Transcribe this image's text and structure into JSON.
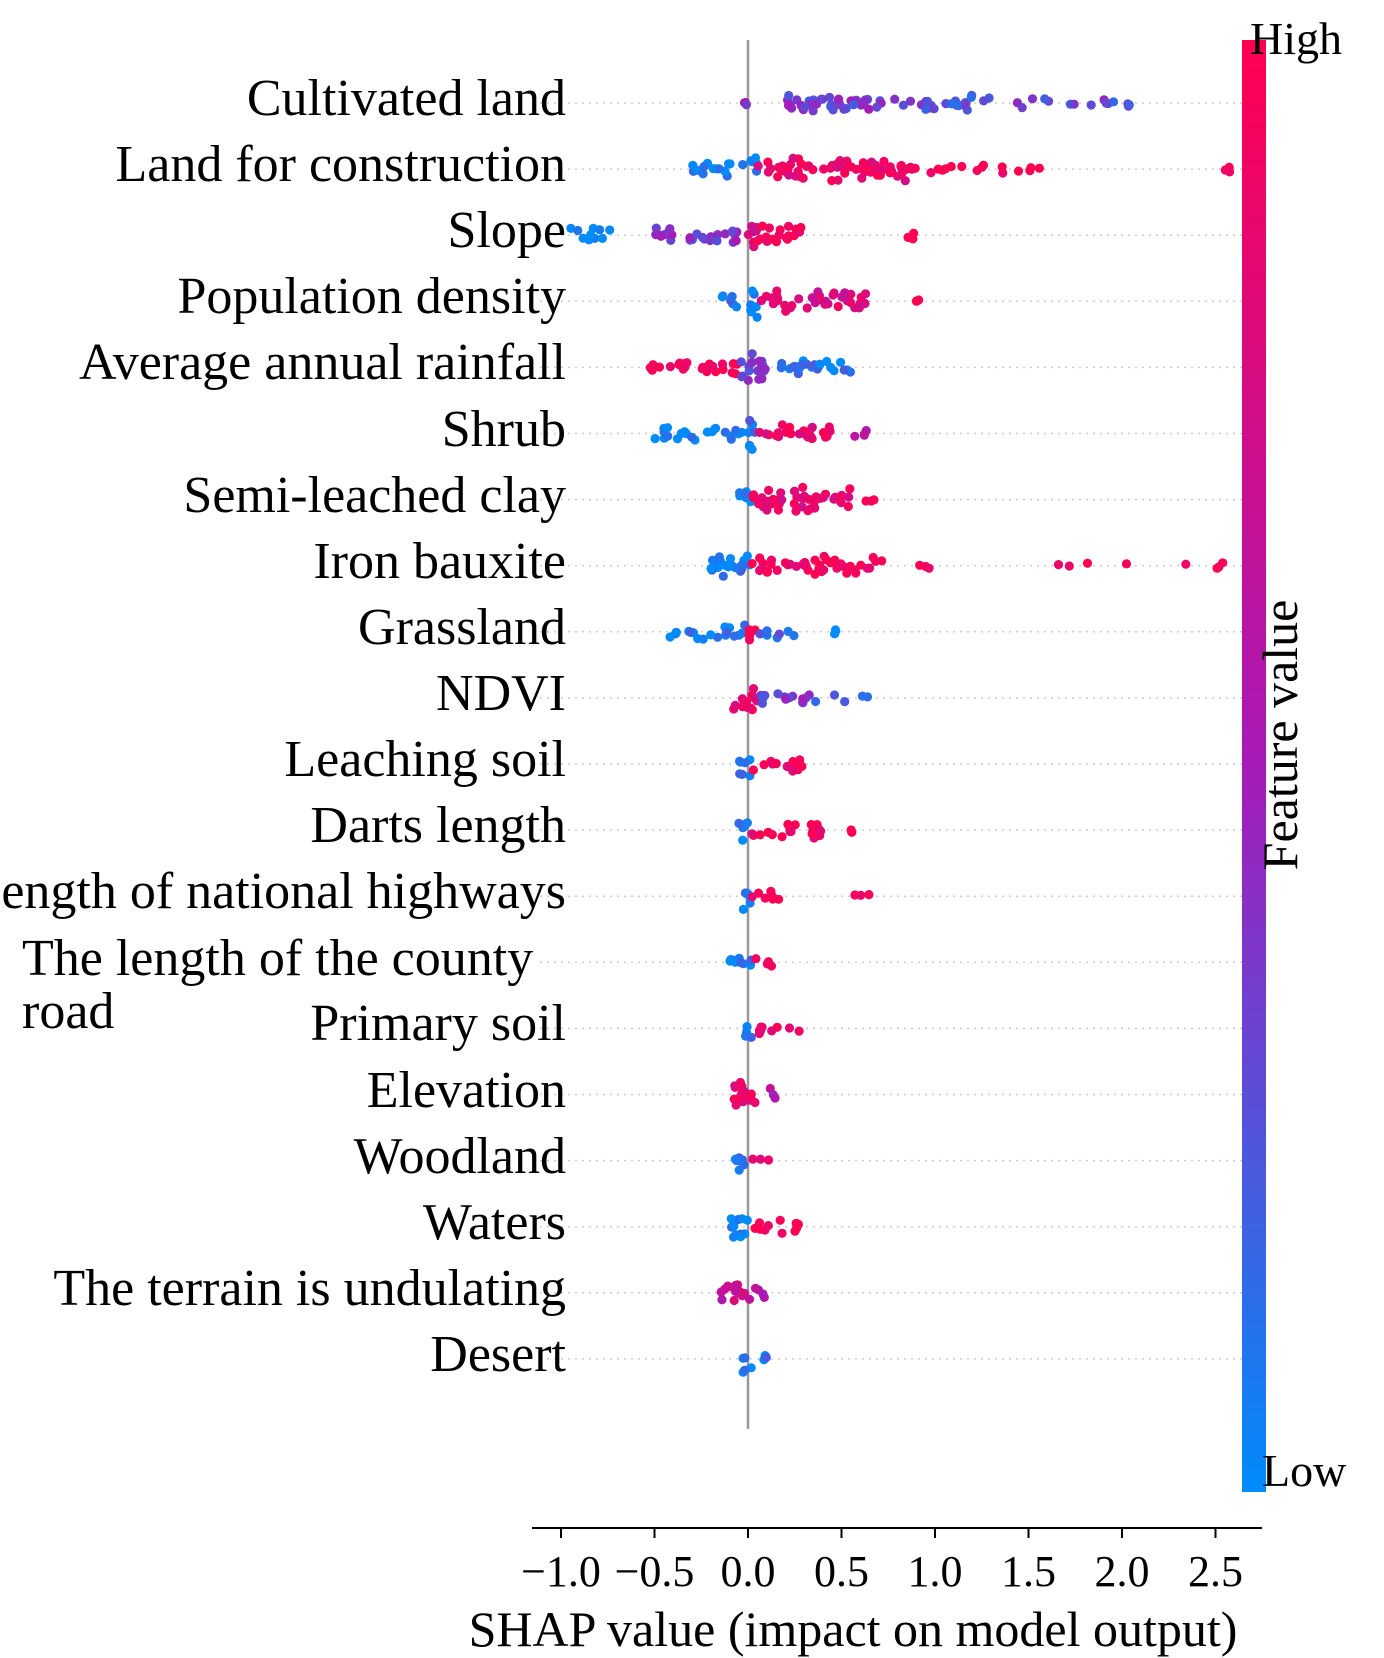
{
  "chart_data": {
    "type": "scatter",
    "subtype": "shap-beeswarm",
    "xlabel": "SHAP value (impact on model output)",
    "xlim": [
      -1.0,
      2.75
    ],
    "xticks": [
      -1.0,
      -0.5,
      0.0,
      0.5,
      1.0,
      1.5,
      2.0,
      2.5
    ],
    "xtick_labels": [
      "−1.0",
      "−0.5",
      "0.0",
      "0.5",
      "1.0",
      "1.5",
      "2.0",
      "2.5"
    ],
    "colorbar": {
      "title": "Feature value",
      "high_label": "High",
      "low_label": "Low",
      "high_color": "#ff0052",
      "mid_color": "#a71ab8",
      "low_color": "#008bfb"
    },
    "features": [
      {
        "name": "Cultivated land",
        "clusters": [
          [
            -0.15,
            0.05,
            0.4,
            0.0
          ],
          [
            0.15,
            0.85,
            0.35,
            0.35
          ],
          [
            0.85,
            1.3,
            0.25,
            0.3
          ],
          [
            1.4,
            2.05,
            0.3,
            0.15
          ]
        ]
      },
      {
        "name": "Land for construction",
        "clusters": [
          [
            -0.3,
            0.0,
            0.05,
            0.3
          ],
          [
            0.0,
            0.05,
            0.0,
            0.6
          ],
          [
            0.05,
            0.85,
            0.9,
            0.5
          ],
          [
            0.85,
            1.6,
            1.0,
            0.15
          ],
          [
            2.55,
            2.6,
            1.0,
            0.1
          ]
        ]
      },
      {
        "name": "Slope",
        "clusters": [
          [
            -0.95,
            -0.72,
            0.0,
            0.25
          ],
          [
            -0.5,
            -0.05,
            0.4,
            0.35
          ],
          [
            0.0,
            0.05,
            0.7,
            0.9
          ],
          [
            0.05,
            0.3,
            0.95,
            0.45
          ],
          [
            0.85,
            0.9,
            1.0,
            0.1
          ]
        ]
      },
      {
        "name": "Population density",
        "clusters": [
          [
            -0.15,
            0.0,
            0.1,
            0.25
          ],
          [
            0.0,
            0.05,
            0.05,
            0.8
          ],
          [
            0.05,
            0.65,
            0.8,
            0.4
          ],
          [
            0.9,
            0.92,
            1.0,
            0.05
          ]
        ]
      },
      {
        "name": "Average annual rainfall",
        "clusters": [
          [
            -0.57,
            -0.05,
            1.0,
            0.3
          ],
          [
            -0.05,
            0.1,
            0.35,
            0.8
          ],
          [
            0.1,
            0.55,
            0.1,
            0.3
          ]
        ]
      },
      {
        "name": "Shrub",
        "clusters": [
          [
            -0.52,
            0.0,
            0.0,
            0.25
          ],
          [
            0.0,
            0.05,
            0.1,
            0.9
          ],
          [
            0.05,
            0.45,
            0.9,
            0.35
          ],
          [
            0.5,
            0.75,
            0.6,
            0.1
          ]
        ]
      },
      {
        "name": "Semi-leached clay",
        "clusters": [
          [
            -0.05,
            0.02,
            0.05,
            0.55
          ],
          [
            0.02,
            0.55,
            0.85,
            0.5
          ],
          [
            0.55,
            0.7,
            1.0,
            0.1
          ]
        ]
      },
      {
        "name": "Iron bauxite",
        "clusters": [
          [
            -0.22,
            0.02,
            0.05,
            0.55
          ],
          [
            0.02,
            0.75,
            0.95,
            0.35
          ],
          [
            0.85,
            1.0,
            1.0,
            0.08
          ],
          [
            1.6,
            2.55,
            1.0,
            0.05
          ]
        ]
      },
      {
        "name": "Grassland",
        "clusters": [
          [
            -0.42,
            0.0,
            0.05,
            0.3
          ],
          [
            0.0,
            0.05,
            0.95,
            0.7
          ],
          [
            0.05,
            0.25,
            0.15,
            0.25
          ],
          [
            0.45,
            0.47,
            0.0,
            0.05
          ]
        ]
      },
      {
        "name": "NDVI",
        "clusters": [
          [
            -0.08,
            0.05,
            0.9,
            0.6
          ],
          [
            0.05,
            0.35,
            0.35,
            0.3
          ],
          [
            0.35,
            0.65,
            0.15,
            0.1
          ]
        ]
      },
      {
        "name": "Leaching soil",
        "clusters": [
          [
            -0.05,
            0.02,
            0.05,
            0.6
          ],
          [
            0.02,
            0.3,
            0.95,
            0.3
          ]
        ]
      },
      {
        "name": "Darts length",
        "clusters": [
          [
            -0.05,
            0.02,
            0.05,
            0.6
          ],
          [
            0.02,
            0.4,
            0.95,
            0.3
          ],
          [
            0.55,
            0.57,
            1.0,
            0.05
          ]
        ]
      },
      {
        "name": "Length of national highways",
        "clusters": [
          [
            -0.04,
            0.02,
            0.05,
            0.6
          ],
          [
            0.02,
            0.2,
            0.95,
            0.25
          ],
          [
            0.57,
            0.65,
            1.0,
            0.05
          ]
        ]
      },
      {
        "name": "The length of the county road",
        "clusters": [
          [
            -0.1,
            0.02,
            0.05,
            0.5
          ],
          [
            0.02,
            0.15,
            0.95,
            0.2
          ]
        ]
      },
      {
        "name": "Primary soil",
        "clusters": [
          [
            -0.02,
            0.02,
            0.05,
            0.6
          ],
          [
            0.02,
            0.28,
            0.95,
            0.2
          ]
        ]
      },
      {
        "name": "Elevation",
        "clusters": [
          [
            -0.12,
            0.05,
            0.85,
            0.6
          ],
          [
            0.05,
            0.15,
            0.55,
            0.2
          ]
        ]
      },
      {
        "name": "Woodland",
        "clusters": [
          [
            -0.07,
            0.02,
            0.15,
            0.55
          ],
          [
            0.02,
            0.12,
            0.95,
            0.2
          ]
        ]
      },
      {
        "name": "Waters",
        "clusters": [
          [
            -0.1,
            0.02,
            0.05,
            0.55
          ],
          [
            0.02,
            0.3,
            0.95,
            0.25
          ]
        ]
      },
      {
        "name": "The terrain is undulating",
        "clusters": [
          [
            -0.15,
            0.05,
            0.7,
            0.5
          ],
          [
            0.05,
            0.1,
            0.6,
            0.15
          ]
        ]
      },
      {
        "name": "Desert",
        "clusters": [
          [
            -0.03,
            0.02,
            0.05,
            0.6
          ],
          [
            0.02,
            0.12,
            0.1,
            0.15
          ]
        ]
      }
    ]
  }
}
